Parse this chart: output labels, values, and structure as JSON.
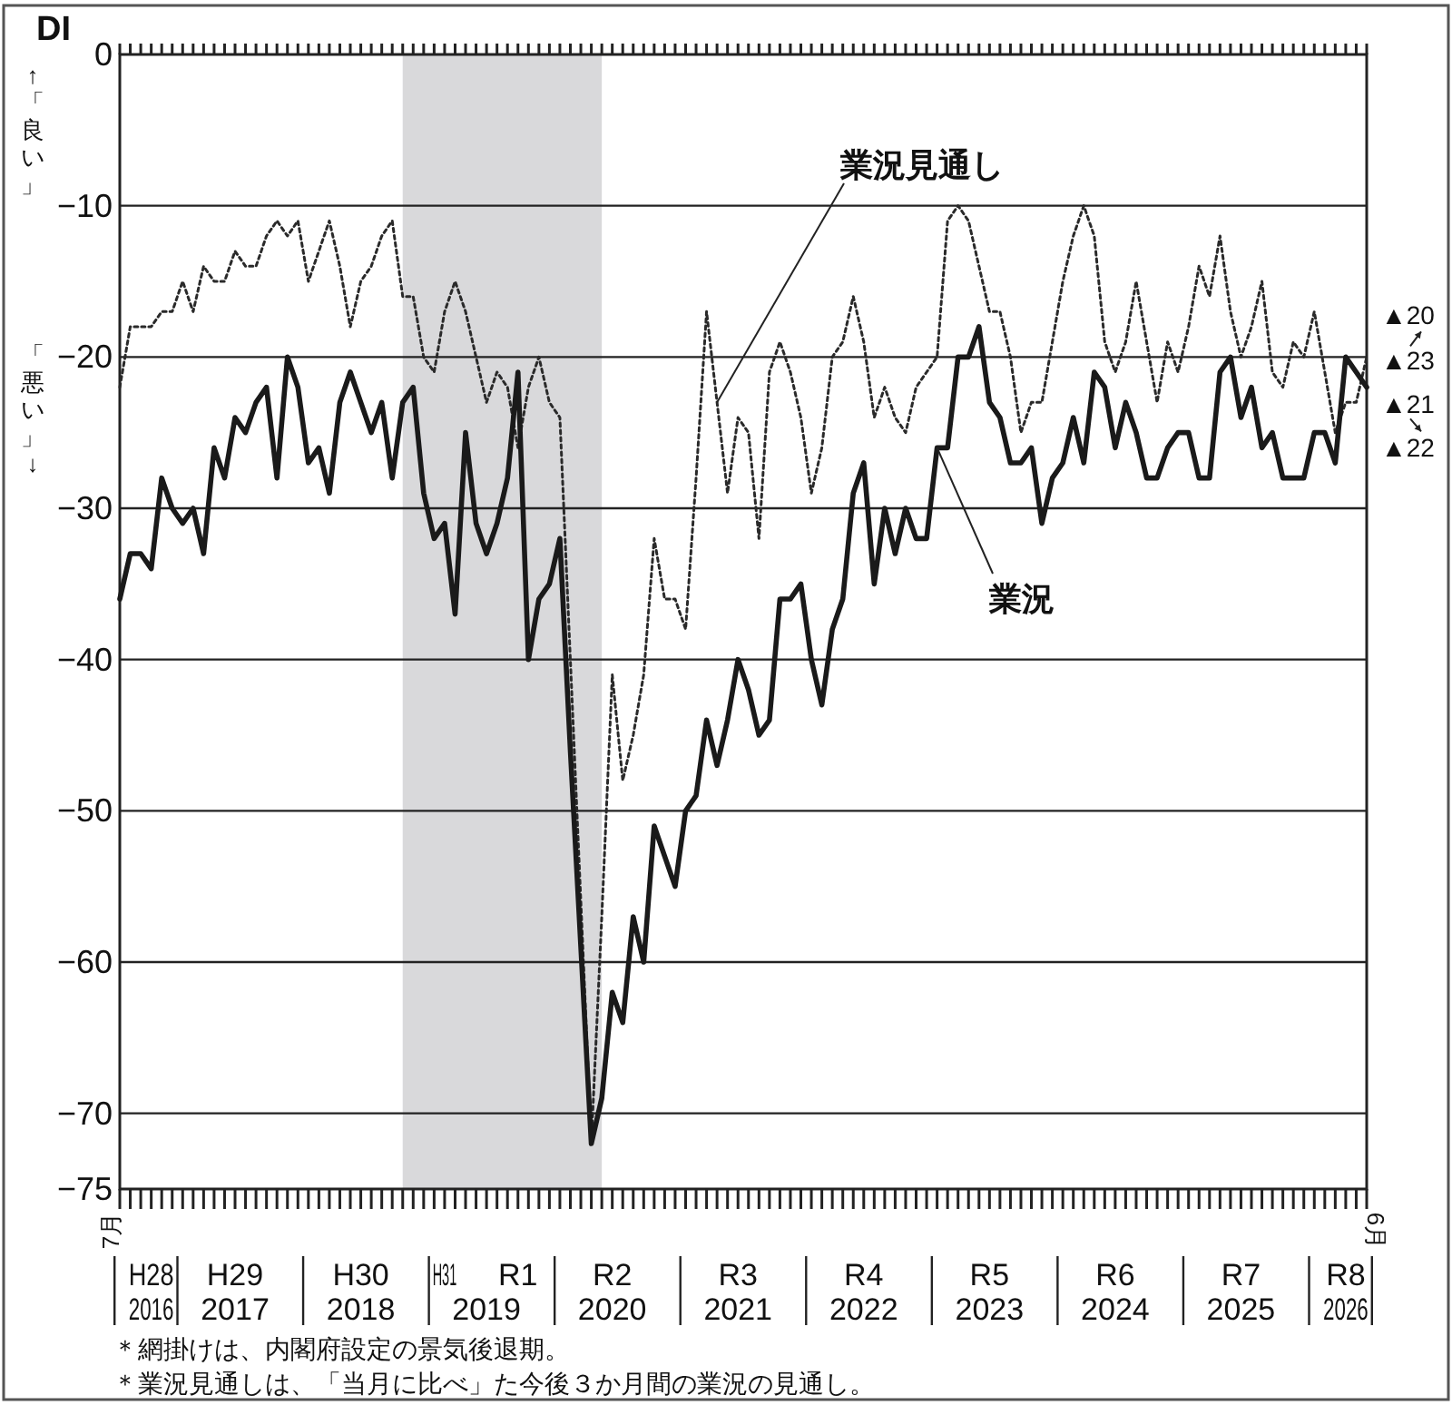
{
  "chart_data": {
    "type": "line",
    "ylabel": "DI",
    "x": [
      "2016-07",
      "2016-08",
      "2016-09",
      "2016-10",
      "2016-11",
      "2016-12",
      "2017-01",
      "2017-02",
      "2017-03",
      "2017-04",
      "2017-05",
      "2017-06",
      "2017-07",
      "2017-08",
      "2017-09",
      "2017-10",
      "2017-11",
      "2017-12",
      "2018-01",
      "2018-02",
      "2018-03",
      "2018-04",
      "2018-05",
      "2018-06",
      "2018-07",
      "2018-08",
      "2018-09",
      "2018-10",
      "2018-11",
      "2018-12",
      "2019-01",
      "2019-02",
      "2019-03",
      "2019-04",
      "2019-05",
      "2019-06",
      "2019-07",
      "2019-08",
      "2019-09",
      "2019-10",
      "2019-11",
      "2019-12",
      "2020-01",
      "2020-02",
      "2020-03",
      "2020-04",
      "2020-05",
      "2020-06",
      "2020-07",
      "2020-08",
      "2020-09",
      "2020-10",
      "2020-11",
      "2020-12",
      "2021-01",
      "2021-02",
      "2021-03",
      "2021-04",
      "2021-05",
      "2021-06",
      "2021-07",
      "2021-08",
      "2021-09",
      "2021-10",
      "2021-11",
      "2021-12",
      "2022-01",
      "2022-02",
      "2022-03",
      "2022-04",
      "2022-05",
      "2022-06",
      "2022-07",
      "2022-08",
      "2022-09",
      "2022-10",
      "2022-11",
      "2022-12",
      "2023-01",
      "2023-02",
      "2023-03",
      "2023-04",
      "2023-05",
      "2023-06",
      "2023-07",
      "2023-08",
      "2023-09",
      "2023-10",
      "2023-11",
      "2023-12",
      "2024-01",
      "2024-02",
      "2024-03",
      "2024-04",
      "2024-05",
      "2024-06",
      "2024-07",
      "2024-08",
      "2024-09",
      "2024-10",
      "2024-11",
      "2024-12",
      "2025-01",
      "2025-02",
      "2025-03",
      "2025-04",
      "2025-05",
      "2025-06",
      "2025-07",
      "2025-08",
      "2025-09",
      "2025-10",
      "2025-11",
      "2025-12",
      "2026-01",
      "2026-02",
      "2026-03",
      "2026-04",
      "2026-05",
      "2026-06"
    ],
    "series": [
      {
        "name": "業況見通し",
        "color": "#2a2a2a",
        "line_style": "dotted",
        "values": [
          -22,
          -18,
          -18,
          -18,
          -17,
          -17,
          -15,
          -17,
          -14,
          -15,
          -15,
          -13,
          -14,
          -14,
          -12,
          -11,
          -12,
          -11,
          -15,
          -13,
          -11,
          -14,
          -18,
          -15,
          -14,
          -12,
          -11,
          -16,
          -16,
          -20,
          -21,
          -17,
          -15,
          -17,
          -20,
          -23,
          -21,
          -22,
          -26,
          -22,
          -20,
          -23,
          -24,
          -40,
          -56,
          -72,
          -57,
          -41,
          -48,
          -45,
          -41,
          -32,
          -36,
          -36,
          -38,
          -28,
          -17,
          -23,
          -29,
          -24,
          -25,
          -32,
          -21,
          -19,
          -21,
          -24,
          -29,
          -26,
          -20,
          -19,
          -16,
          -19,
          -24,
          -22,
          -24,
          -25,
          -22,
          -21,
          -20,
          -11,
          -10,
          -11,
          -14,
          -17,
          -17,
          -20,
          -25,
          -23,
          -23,
          -19,
          -15,
          -12,
          -10,
          -12,
          -19,
          -21,
          -19,
          -15,
          -19,
          -23,
          -19,
          -21,
          -18,
          -14,
          -16,
          -12,
          -17,
          -20,
          -18,
          -15,
          -21,
          -22,
          -19,
          -20,
          -17,
          -21,
          -25,
          -23,
          -23,
          -20
        ]
      },
      {
        "name": "業況",
        "color": "#1a1a1a",
        "line_style": "solid",
        "values": [
          -36,
          -33,
          -33,
          -34,
          -28,
          -30,
          -31,
          -30,
          -33,
          -26,
          -28,
          -24,
          -25,
          -23,
          -22,
          -28,
          -20,
          -22,
          -27,
          -26,
          -29,
          -23,
          -21,
          -23,
          -25,
          -23,
          -28,
          -23,
          -22,
          -29,
          -32,
          -31,
          -37,
          -25,
          -31,
          -33,
          -31,
          -28,
          -21,
          -40,
          -36,
          -35,
          -32,
          -46,
          -59,
          -72,
          -69,
          -62,
          -64,
          -57,
          -60,
          -51,
          -53,
          -55,
          -50,
          -49,
          -44,
          -47,
          -44,
          -40,
          -42,
          -45,
          -44,
          -36,
          -36,
          -35,
          -40,
          -43,
          -38,
          -36,
          -29,
          -27,
          -35,
          -30,
          -33,
          -30,
          -32,
          -32,
          -26,
          -26,
          -20,
          -20,
          -18,
          -23,
          -24,
          -27,
          -27,
          -26,
          -31,
          -28,
          -27,
          -24,
          -27,
          -21,
          -22,
          -26,
          -23,
          -25,
          -28,
          -28,
          -26,
          -25,
          -25,
          -28,
          -28,
          -21,
          -20,
          -24,
          -22,
          -26,
          -25,
          -28,
          -28,
          -28,
          -25,
          -25,
          -27,
          -20,
          -21,
          -22
        ]
      }
    ],
    "xlim": [
      "2016-07",
      "2026-06"
    ],
    "xticks": [
      {
        "value": "2016-07",
        "label": null
      },
      {
        "value": "2016-08",
        "label": null
      },
      {
        "value": "2016-09",
        "label": null
      },
      {
        "value": "2016-10",
        "label": "2016"
      },
      {
        "value": "2016-11",
        "label": null
      },
      {
        "value": "2016-12",
        "label": null
      },
      {
        "value": "2017-01",
        "label": null
      },
      {
        "value": "2017-02",
        "label": null
      },
      {
        "value": "2017-03",
        "label": null
      },
      {
        "value": "2017-04",
        "label": null
      },
      {
        "value": "2017-05",
        "label": null
      },
      {
        "value": "2017-06",
        "label": "2017"
      },
      {
        "value": "2017-07",
        "label": null
      },
      {
        "value": "2017-08",
        "label": null
      },
      {
        "value": "2017-09",
        "label": null
      },
      {
        "value": "2017-10",
        "label": null
      },
      {
        "value": "2017-11",
        "label": null
      },
      {
        "value": "2017-12",
        "label": null
      },
      {
        "value": "2018-01",
        "label": null
      },
      {
        "value": "2018-02",
        "label": null
      },
      {
        "value": "2018-03",
        "label": null
      },
      {
        "value": "2018-04",
        "label": null
      },
      {
        "value": "2018-05",
        "label": null
      },
      {
        "value": "2018-06",
        "label": "2018"
      },
      {
        "value": "2018-07",
        "label": null
      },
      {
        "value": "2018-08",
        "label": null
      },
      {
        "value": "2018-09",
        "label": null
      },
      {
        "value": "2018-10",
        "label": null
      },
      {
        "value": "2018-11",
        "label": null
      },
      {
        "value": "2018-12",
        "label": null
      },
      {
        "value": "2019-01",
        "label": null
      },
      {
        "value": "2019-02",
        "label": null
      },
      {
        "value": "2019-03",
        "label": null
      },
      {
        "value": "2019-04",
        "label": null
      },
      {
        "value": "2019-05",
        "label": null
      },
      {
        "value": "2019-06",
        "label": "2019"
      },
      {
        "value": "2019-07",
        "label": null
      },
      {
        "value": "2019-08",
        "label": null
      },
      {
        "value": "2019-09",
        "label": null
      },
      {
        "value": "2019-10",
        "label": null
      },
      {
        "value": "2019-11",
        "label": null
      },
      {
        "value": "2019-12",
        "label": null
      },
      {
        "value": "2020-01",
        "label": null
      },
      {
        "value": "2020-02",
        "label": null
      },
      {
        "value": "2020-03",
        "label": null
      },
      {
        "value": "2020-04",
        "label": null
      },
      {
        "value": "2020-05",
        "label": null
      },
      {
        "value": "2020-06",
        "label": "2020"
      },
      {
        "value": "2020-07",
        "label": null
      },
      {
        "value": "2020-08",
        "label": null
      },
      {
        "value": "2020-09",
        "label": null
      },
      {
        "value": "2020-10",
        "label": null
      },
      {
        "value": "2020-11",
        "label": null
      },
      {
        "value": "2020-12",
        "label": null
      },
      {
        "value": "2021-01",
        "label": null
      },
      {
        "value": "2021-02",
        "label": null
      },
      {
        "value": "2021-03",
        "label": null
      },
      {
        "value": "2021-04",
        "label": null
      },
      {
        "value": "2021-05",
        "label": null
      },
      {
        "value": "2021-06",
        "label": "2021"
      },
      {
        "value": "2021-07",
        "label": null
      },
      {
        "value": "2021-08",
        "label": null
      },
      {
        "value": "2021-09",
        "label": null
      },
      {
        "value": "2021-10",
        "label": null
      },
      {
        "value": "2021-11",
        "label": null
      },
      {
        "value": "2021-12",
        "label": null
      },
      {
        "value": "2022-01",
        "label": null
      },
      {
        "value": "2022-02",
        "label": null
      },
      {
        "value": "2022-03",
        "label": null
      },
      {
        "value": "2022-04",
        "label": null
      },
      {
        "value": "2022-05",
        "label": null
      },
      {
        "value": "2022-06",
        "label": "2022"
      },
      {
        "value": "2022-07",
        "label": null
      },
      {
        "value": "2022-08",
        "label": null
      },
      {
        "value": "2022-09",
        "label": null
      },
      {
        "value": "2022-10",
        "label": null
      },
      {
        "value": "2022-11",
        "label": null
      },
      {
        "value": "2022-12",
        "label": null
      },
      {
        "value": "2023-01",
        "label": null
      },
      {
        "value": "2023-02",
        "label": null
      },
      {
        "value": "2023-03",
        "label": null
      },
      {
        "value": "2023-04",
        "label": null
      },
      {
        "value": "2023-05",
        "label": null
      },
      {
        "value": "2023-06",
        "label": "2023"
      },
      {
        "value": "2023-07",
        "label": null
      },
      {
        "value": "2023-08",
        "label": null
      },
      {
        "value": "2023-09",
        "label": null
      },
      {
        "value": "2023-10",
        "label": null
      },
      {
        "value": "2023-11",
        "label": null
      },
      {
        "value": "2023-12",
        "label": null
      },
      {
        "value": "2024-01",
        "label": null
      },
      {
        "value": "2024-02",
        "label": null
      },
      {
        "value": "2024-03",
        "label": null
      },
      {
        "value": "2024-04",
        "label": null
      },
      {
        "value": "2024-05",
        "label": null
      },
      {
        "value": "2024-06",
        "label": "2024"
      },
      {
        "value": "2024-07",
        "label": null
      },
      {
        "value": "2024-08",
        "label": null
      },
      {
        "value": "2024-09",
        "label": null
      },
      {
        "value": "2024-10",
        "label": null
      },
      {
        "value": "2024-11",
        "label": null
      },
      {
        "value": "2024-12",
        "label": null
      },
      {
        "value": "2025-01",
        "label": null
      },
      {
        "value": "2025-02",
        "label": null
      },
      {
        "value": "2025-03",
        "label": null
      },
      {
        "value": "2025-04",
        "label": null
      },
      {
        "value": "2025-05",
        "label": null
      },
      {
        "value": "2025-06",
        "label": "2025"
      },
      {
        "value": "2025-07",
        "label": null
      },
      {
        "value": "2025-08",
        "label": null
      },
      {
        "value": "2025-09",
        "label": null
      },
      {
        "value": "2025-10",
        "label": null
      },
      {
        "value": "2025-11",
        "label": null
      },
      {
        "value": "2025-12",
        "label": null
      },
      {
        "value": "2026-01",
        "label": null
      },
      {
        "value": "2026-02",
        "label": null
      },
      {
        "value": "2026-03",
        "label": null
      },
      {
        "value": "2026-04",
        "label": "2026"
      },
      {
        "value": "2026-05",
        "label": null
      },
      {
        "value": "2026-06",
        "label": null
      }
    ],
    "x2lim": [
      "2016-07",
      "2026-06"
    ],
    "x2ticks": [
      {
        "value": "2016-10",
        "label": "H28"
      },
      {
        "value": "2017-06",
        "label": "H29"
      },
      {
        "value": "2018-06",
        "label": "H30"
      },
      {
        "value": "2019-02",
        "label": "H31"
      },
      {
        "value": "2019-09",
        "label": "R1"
      },
      {
        "value": "2020-06",
        "label": "R2"
      },
      {
        "value": "2021-06",
        "label": "R3"
      },
      {
        "value": "2022-06",
        "label": "R4"
      },
      {
        "value": "2023-06",
        "label": "R5"
      },
      {
        "value": "2024-06",
        "label": "R6"
      },
      {
        "value": "2025-06",
        "label": "R7"
      },
      {
        "value": "2026-04",
        "label": "R8"
      }
    ],
    "ylim": [
      -75,
      0
    ],
    "yticks": [
      0,
      -10,
      -20,
      -30,
      -40,
      -50,
      -60,
      -70,
      -75
    ],
    "grid": "y",
    "bands": [
      {
        "axis": "x",
        "from": "2018-10",
        "to": "2020-05",
        "color": "#d9d9db"
      }
    ],
    "annotations": [
      "↑「良い」",
      "「悪い」↓",
      "＊網掛けは、内閣府設定の景気後退期。",
      "＊業況見通しは、「当月に比べ」た今後３か月間の業況の見通し。",
      "7月",
      "6月",
      {
        "text": "▲20",
        "x": "2026-06",
        "y": -20
      },
      {
        "text": "▲23",
        "x": "2026-05",
        "y": -23
      },
      {
        "text": "▲21",
        "x": "2026-05",
        "y": -21
      },
      {
        "text": "▲22",
        "x": "2026-06",
        "y": -22
      }
    ]
  }
}
